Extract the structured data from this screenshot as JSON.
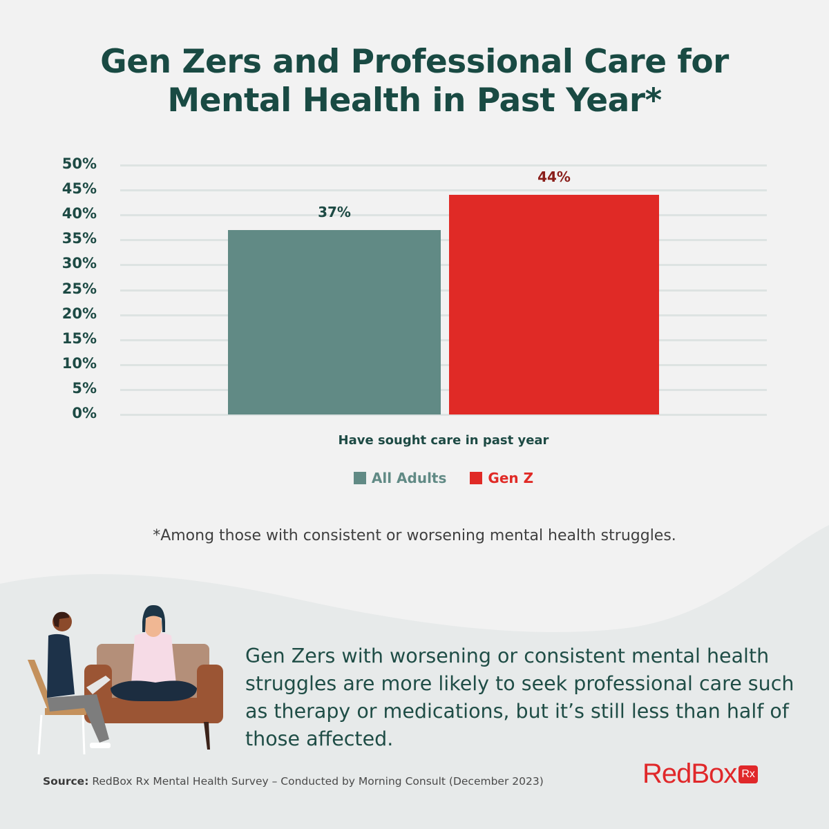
{
  "title": {
    "line1": "Gen Zers and Professional Care for",
    "line2": "Mental Health in Past Year*"
  },
  "chart_data": {
    "type": "bar",
    "title": "Gen Zers and Professional Care for Mental Health in Past Year*",
    "categories": [
      "Have sought care in past year"
    ],
    "series": [
      {
        "name": "All Adults",
        "values": [
          37
        ],
        "color": "#618a85",
        "label": "37%",
        "label_color": "#1d4a44"
      },
      {
        "name": "Gen Z",
        "values": [
          44
        ],
        "color": "#e02a26",
        "label": "44%",
        "label_color": "#8a1e1a"
      }
    ],
    "xlabel": "Have sought care in past year",
    "ylabel": "",
    "ylim": [
      0,
      50
    ],
    "yticks": [
      "50%",
      "45%",
      "40%",
      "35%",
      "30%",
      "25%",
      "20%",
      "15%",
      "10%",
      "5%",
      "0%"
    ],
    "grid": true,
    "legend_position": "bottom"
  },
  "legend": {
    "items": [
      {
        "label": "All Adults",
        "color": "#618a85",
        "text_color": "#618a85"
      },
      {
        "label": "Gen Z",
        "color": "#e02a26",
        "text_color": "#e02a26"
      }
    ]
  },
  "footnote": "*Among those with consistent or worsening mental health struggles.",
  "summary": "Gen Zers with worsening or consistent mental health struggles are more likely to seek professional care such as therapy or medications, but it’s still less than half of those affected.",
  "source": {
    "label": "Source:",
    "text": " RedBox Rx Mental Health Survey – Conducted by Morning Consult (December 2023)"
  },
  "logo": {
    "text": "RedBox",
    "badge": "Rx"
  }
}
